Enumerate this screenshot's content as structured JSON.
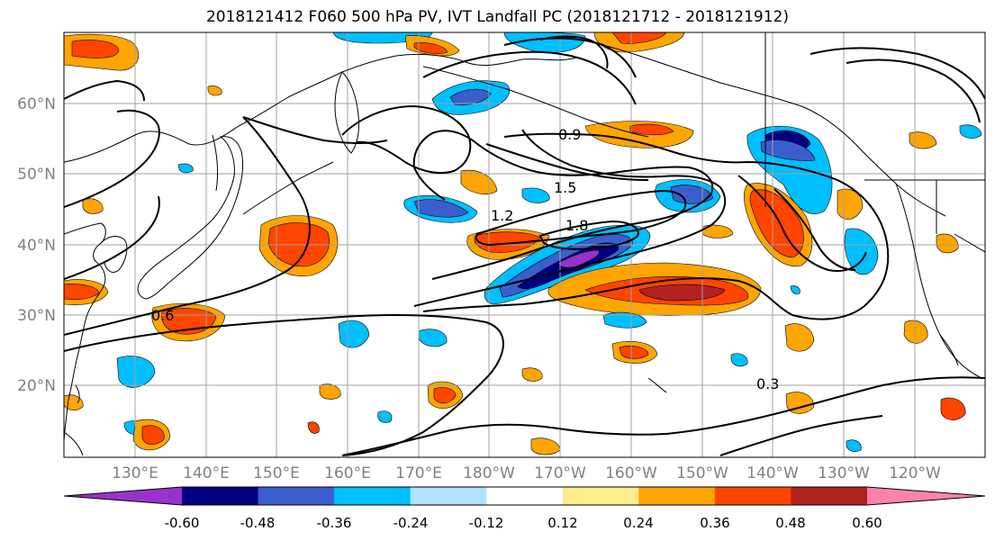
{
  "title": "2018121412 F060 500 hPa PV, IVT Landfall PC (2018121712 - 2018121912)",
  "lat_labels": [
    "20°N",
    "30°N",
    "40°N",
    "50°N",
    "60°N"
  ],
  "lon_labels": [
    "130°E",
    "140°E",
    "150°E",
    "160°E",
    "170°E",
    "180°W",
    "170°W",
    "160°W",
    "150°W",
    "140°W",
    "130°W",
    "120°W"
  ],
  "colorbar": {
    "levels": [
      "-0.60",
      "-0.48",
      "-0.36",
      "-0.24",
      "-0.12",
      "0.12",
      "0.24",
      "0.36",
      "0.48",
      "0.60"
    ],
    "colors": [
      "#9932cc",
      "#000080",
      "#3a5fcd",
      "#00bfff",
      "#b0e2ff",
      "#ffffff",
      "#ffec8b",
      "#ffa500",
      "#ff4500",
      "#b22222",
      "#ff82ab"
    ]
  },
  "contour_labels": [
    "0.3",
    "0.6",
    "0.9",
    "1.2",
    "1.5",
    "1.8"
  ],
  "colors": {
    "grid": "#a0a0a0",
    "coast": "#000000",
    "contour": "#000000",
    "tick_text": "#808080"
  }
}
